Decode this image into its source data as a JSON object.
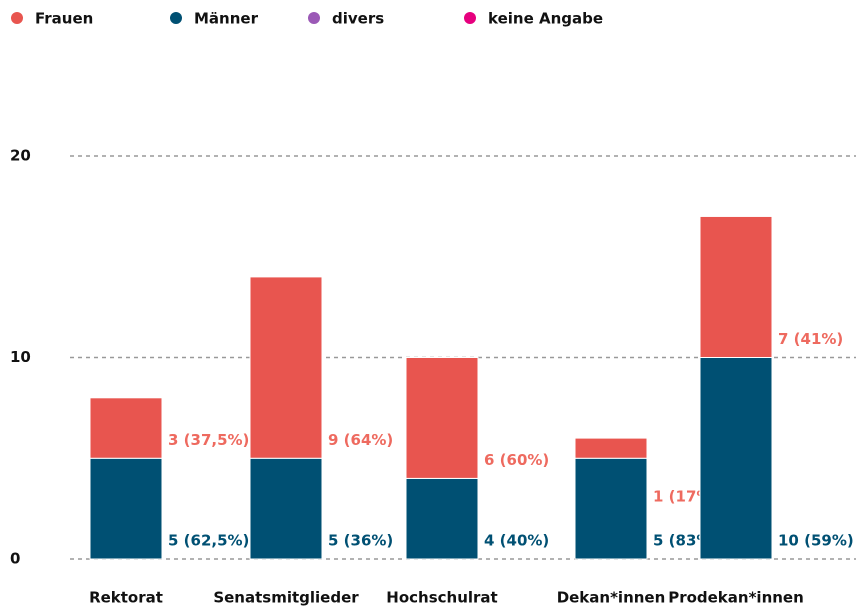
{
  "chart_data": {
    "type": "stacked_bar",
    "categories": [
      "Rektorat",
      "Senatsmitglieder",
      "Hochschulrat",
      "Dekan*innen",
      "Prodekan*innen"
    ],
    "series": [
      {
        "name": "Frauen",
        "color": "#e8554f",
        "values": [
          3,
          9,
          6,
          1,
          7
        ],
        "value_labels": [
          "3 (37,5%)",
          "9 (64%)",
          "6 (60%)",
          "1 (17%)",
          "7 (41%)"
        ]
      },
      {
        "name": "Männer",
        "color": "#005073",
        "values": [
          5,
          5,
          4,
          5,
          10
        ],
        "value_labels": [
          "5 (62,5%)",
          "5 (36%)",
          "4 (40%)",
          "5 (83%)",
          "10 (59%)"
        ]
      },
      {
        "name": "divers",
        "color": "#9b59b6",
        "values": [
          0,
          0,
          0,
          0,
          0
        ]
      },
      {
        "name": "keine Angabe",
        "color": "#e6007e",
        "values": [
          0,
          0,
          0,
          0,
          0
        ]
      }
    ],
    "ylim": [
      0,
      20
    ],
    "yticks": [
      0,
      10,
      20
    ],
    "grid": true,
    "legend": "top"
  }
}
